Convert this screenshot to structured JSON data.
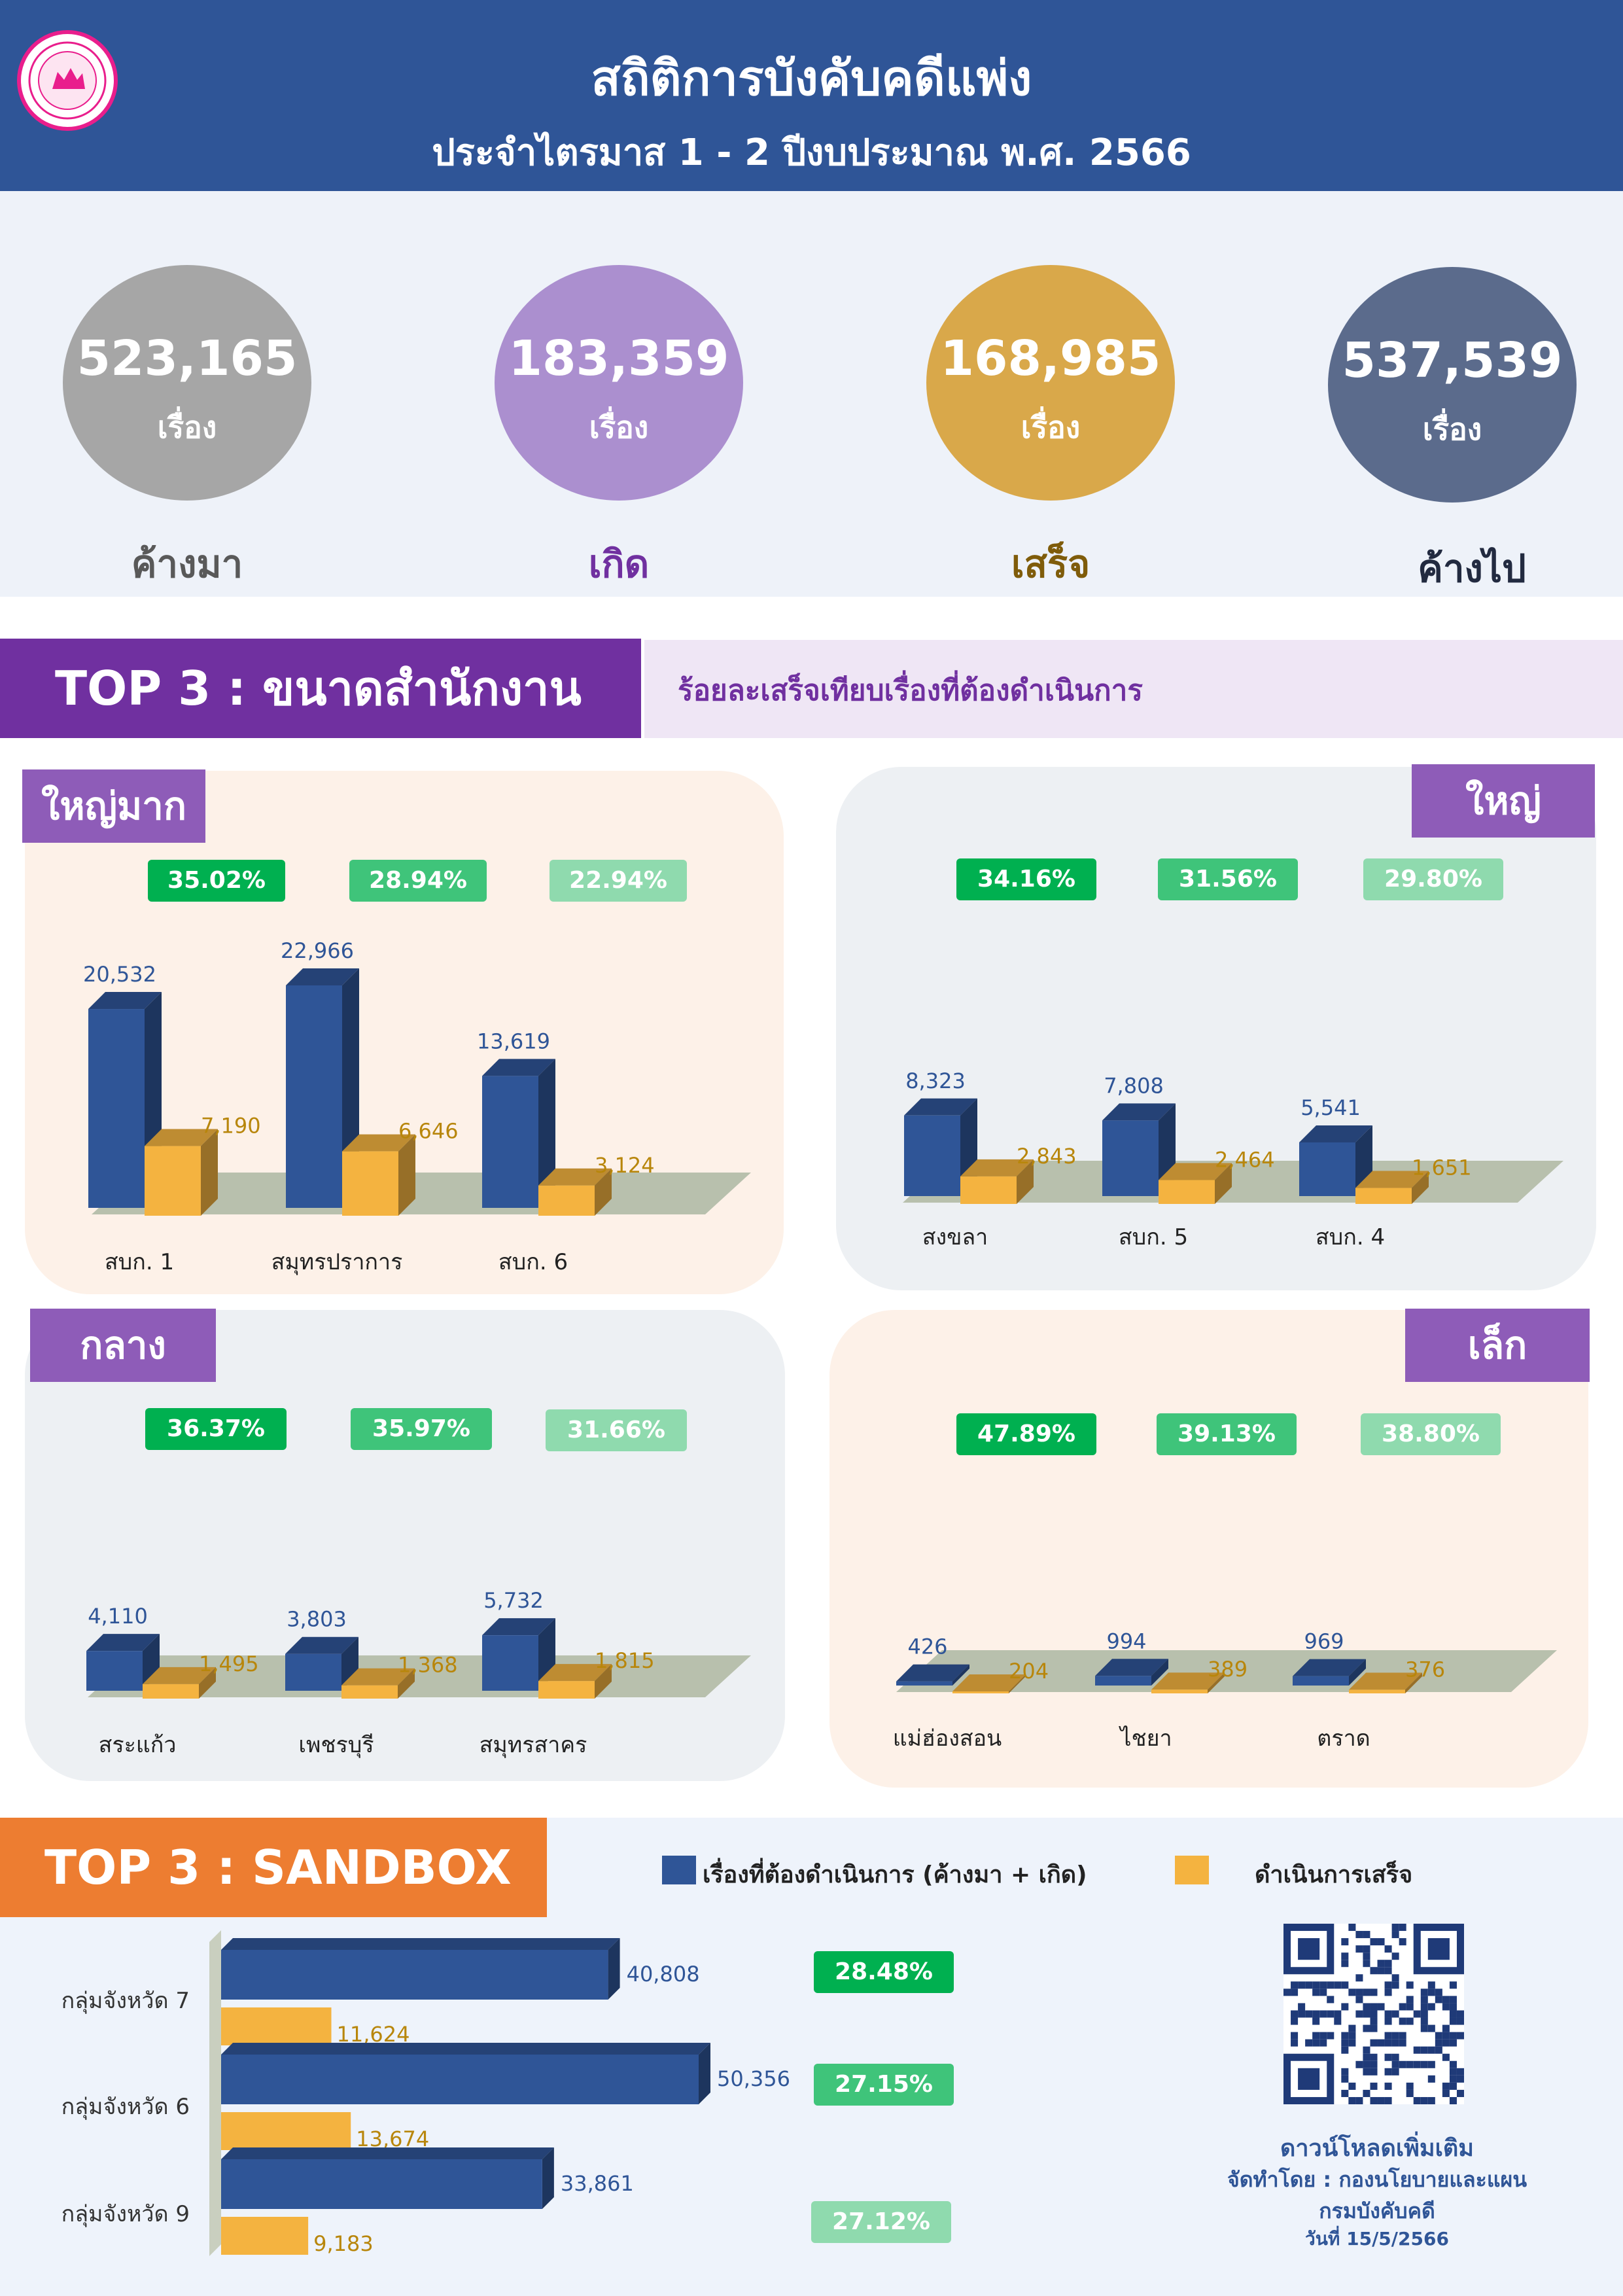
{
  "header": {
    "title": "สถิติการบังคับคดีแพ่ง",
    "subtitle": "ประจำไตรมาส 1 - 2 ปีงบประมาณ พ.ศ. 2566"
  },
  "summary": [
    {
      "value": "523,165",
      "unit": "เรื่อง",
      "caption": "ค้างมา",
      "color": "#a6a6a6",
      "caption_color": "#595959"
    },
    {
      "value": "183,359",
      "unit": "เรื่อง",
      "caption": "เกิด",
      "color": "#ab8fcf",
      "caption_color": "#7030a0"
    },
    {
      "value": "168,985",
      "unit": "เรื่อง",
      "caption": "เสร็จ",
      "color": "#d9a84a",
      "caption_color": "#7f5c0a"
    },
    {
      "value": "537,539",
      "unit": "เรื่อง",
      "caption": "ค้างไป",
      "color": "#5b6b8c",
      "caption_color": "#222a40"
    }
  ],
  "top3": {
    "title": "TOP 3 : ขนาดสำนักงาน",
    "subtitle": "ร้อยละเสร็จเทียบเรื่องที่ต้องดำเนินการ"
  },
  "colors": {
    "blue": "#2f5597",
    "orange": "#f4b340",
    "pct1": "#00b050",
    "pct2": "#3fc47a",
    "pct3": "#8fdaae"
  },
  "chart_data": [
    {
      "type": "bar",
      "group": "ใหญ่มาก",
      "categories": [
        "สบก. 1",
        "สมุทรปราการ",
        "สบก. 6"
      ],
      "series": [
        {
          "values": [
            20532,
            22966,
            13619
          ]
        },
        {
          "values": [
            7190,
            6646,
            3124
          ]
        }
      ],
      "value_labels": {
        "blue": [
          "20,532",
          "22,966",
          "13,619"
        ],
        "orange": [
          "7,190",
          "6,646",
          "3,124"
        ]
      },
      "percents": [
        "35.02%",
        "28.94%",
        "22.94%"
      ]
    },
    {
      "type": "bar",
      "group": "ใหญ่",
      "categories": [
        "สงขลา",
        "สบก. 5",
        "สบก. 4"
      ],
      "series": [
        {
          "values": [
            8323,
            7808,
            5541
          ]
        },
        {
          "values": [
            2843,
            2464,
            1651
          ]
        }
      ],
      "value_labels": {
        "blue": [
          "8,323",
          "7,808",
          "5,541"
        ],
        "orange": [
          "2,843",
          "2,464",
          "1,651"
        ]
      },
      "percents": [
        "34.16%",
        "31.56%",
        "29.80%"
      ]
    },
    {
      "type": "bar",
      "group": "กลาง",
      "categories": [
        "สระแก้ว",
        "เพชรบุรี",
        "สมุทรสาคร"
      ],
      "series": [
        {
          "values": [
            4110,
            3803,
            5732
          ]
        },
        {
          "values": [
            1495,
            1368,
            1815
          ]
        }
      ],
      "value_labels": {
        "blue": [
          "4,110",
          "3,803",
          "5,732"
        ],
        "orange": [
          "1,495",
          "1,368",
          "1,815"
        ]
      },
      "percents": [
        "36.37%",
        "35.97%",
        "31.66%"
      ]
    },
    {
      "type": "bar",
      "group": "เล็ก",
      "categories": [
        "แม่ฮ่องสอน",
        "ไชยา",
        "ตราด"
      ],
      "series": [
        {
          "values": [
            426,
            994,
            969
          ]
        },
        {
          "values": [
            204,
            389,
            376
          ]
        }
      ],
      "value_labels": {
        "blue": [
          "426",
          "994",
          "969"
        ],
        "orange": [
          "204",
          "389",
          "376"
        ]
      },
      "percents": [
        "47.89%",
        "39.13%",
        "38.80%"
      ]
    },
    {
      "type": "bar",
      "orientation": "horizontal",
      "title": "TOP 3 : SANDBOX",
      "categories": [
        "กลุ่มจังหวัด 7",
        "กลุ่มจังหวัด 6",
        "กลุ่มจังหวัด 9"
      ],
      "series": [
        {
          "name": "เรื่องที่ต้องดำเนินการ (ค้างมา + เกิด)",
          "values": [
            40808,
            50356,
            33861
          ]
        },
        {
          "name": "ดำเนินการเสร็จ",
          "values": [
            11624,
            13674,
            9183
          ]
        }
      ],
      "value_labels": {
        "blue": [
          "40,808",
          "50,356",
          "33,861"
        ],
        "orange": [
          "11,624",
          "13,674",
          "9,183"
        ]
      },
      "percents": [
        "28.48%",
        "27.15%",
        "27.12%"
      ]
    }
  ],
  "footer": {
    "download": "ดาวน์โหลดเพิ่มเติม",
    "prepared_by": "จัดทำโดย : กองนโยบายและแผน",
    "department": "กรมบังคับคดี",
    "date": "วันที่ 15/5/2566"
  }
}
